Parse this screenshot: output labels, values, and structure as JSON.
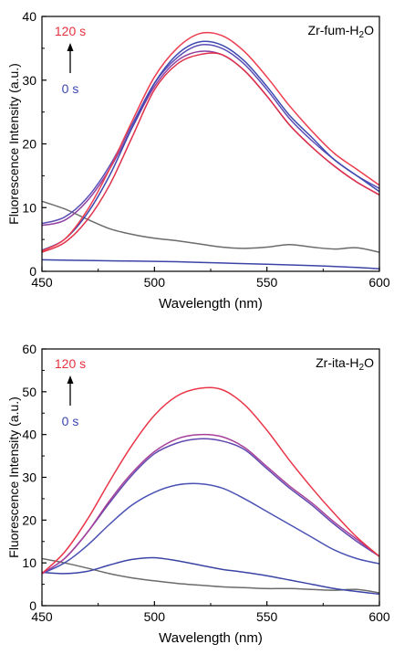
{
  "chart_data": [
    {
      "type": "line",
      "panel_label": "Zr-fum-H₂O",
      "xlabel": "Wavelength (nm)",
      "ylabel": "Fluorescence Intensity (a.u.)",
      "xlim": [
        450,
        600
      ],
      "ylim": [
        0,
        40
      ],
      "xticks": [
        450,
        500,
        550,
        600
      ],
      "yticks": [
        0,
        10,
        20,
        30,
        40
      ],
      "time_annotation": {
        "top": "120 s",
        "bottom": "0 s"
      },
      "series": [
        {
          "color": "#6b6b6b",
          "x": [
            450,
            460,
            470,
            480,
            490,
            500,
            510,
            520,
            530,
            540,
            550,
            560,
            570,
            580,
            590,
            600
          ],
          "y": [
            11.0,
            9.8,
            8.2,
            6.7,
            5.8,
            5.2,
            4.8,
            4.3,
            3.8,
            3.6,
            3.8,
            4.2,
            3.8,
            3.5,
            3.7,
            3.0
          ]
        },
        {
          "color": "#3b44a6",
          "x": [
            450,
            470,
            490,
            510,
            530,
            550,
            570,
            590,
            600
          ],
          "y": [
            1.8,
            1.7,
            1.6,
            1.5,
            1.3,
            1.1,
            0.9,
            0.6,
            0.4
          ]
        },
        {
          "color": "#5b4fb8",
          "x": [
            450,
            460,
            470,
            480,
            490,
            500,
            510,
            520,
            530,
            540,
            550,
            560,
            570,
            580,
            590,
            600
          ],
          "y": [
            7.5,
            8.5,
            11.5,
            16.5,
            23.0,
            29.5,
            33.5,
            35.5,
            35.0,
            32.5,
            28.5,
            24.0,
            20.5,
            17.5,
            15.0,
            13.0
          ]
        },
        {
          "color": "#8e3fa0",
          "x": [
            450,
            460,
            470,
            480,
            490,
            500,
            510,
            520,
            530,
            540,
            550,
            560,
            570,
            580,
            590,
            600
          ],
          "y": [
            7.2,
            8.0,
            11.0,
            16.0,
            22.5,
            29.0,
            33.0,
            34.5,
            34.0,
            31.5,
            27.5,
            23.0,
            19.5,
            16.5,
            14.0,
            12.0
          ]
        },
        {
          "color": "#3d49b0",
          "x": [
            450,
            460,
            470,
            480,
            490,
            500,
            510,
            520,
            530,
            540,
            550,
            560,
            570,
            580,
            590,
            600
          ],
          "y": [
            3.3,
            5.0,
            9.0,
            15.0,
            22.5,
            29.5,
            34.0,
            36.0,
            35.5,
            33.0,
            29.0,
            24.5,
            21.0,
            17.5,
            15.0,
            12.5
          ]
        },
        {
          "color": "#e0304a",
          "x": [
            450,
            460,
            470,
            480,
            490,
            500,
            510,
            520,
            530,
            540,
            550,
            560,
            570,
            580,
            590,
            600
          ],
          "y": [
            3.0,
            4.5,
            8.0,
            13.5,
            21.0,
            28.5,
            32.5,
            34.0,
            34.0,
            31.5,
            27.5,
            23.0,
            19.5,
            16.5,
            14.0,
            12.0
          ]
        },
        {
          "color": "#ee3d4e",
          "x": [
            450,
            460,
            470,
            480,
            490,
            500,
            510,
            520,
            530,
            540,
            550,
            560,
            570,
            580,
            590,
            600
          ],
          "y": [
            3.2,
            5.0,
            9.5,
            16.0,
            23.5,
            30.5,
            35.0,
            37.3,
            37.0,
            34.5,
            30.5,
            26.0,
            22.0,
            18.5,
            16.0,
            13.5
          ]
        }
      ]
    },
    {
      "type": "line",
      "panel_label": "Zr-ita-H₂O",
      "xlabel": "Wavelength (nm)",
      "ylabel": "Fluorescence Intensity (a.u.)",
      "xlim": [
        450,
        600
      ],
      "ylim": [
        0,
        60
      ],
      "xticks": [
        450,
        500,
        550,
        600
      ],
      "yticks": [
        0,
        10,
        20,
        30,
        40,
        50,
        60
      ],
      "time_annotation": {
        "top": "120 s",
        "bottom": "0 s"
      },
      "series": [
        {
          "color": "#6b6b6b",
          "x": [
            450,
            460,
            470,
            480,
            490,
            500,
            510,
            520,
            530,
            540,
            550,
            560,
            570,
            580,
            590,
            600
          ],
          "y": [
            11.0,
            10.0,
            8.8,
            7.5,
            6.5,
            5.8,
            5.2,
            4.8,
            4.4,
            4.2,
            4.0,
            4.0,
            3.8,
            3.6,
            3.8,
            3.0
          ]
        },
        {
          "color": "#3b44a6",
          "x": [
            450,
            460,
            470,
            480,
            490,
            500,
            510,
            520,
            530,
            540,
            550,
            560,
            570,
            580,
            590,
            600
          ],
          "y": [
            7.8,
            7.5,
            8.0,
            9.5,
            10.8,
            11.2,
            10.5,
            9.5,
            8.5,
            7.8,
            7.0,
            6.0,
            5.0,
            4.0,
            3.3,
            2.7
          ]
        },
        {
          "color": "#4a52b4",
          "x": [
            450,
            460,
            470,
            480,
            490,
            500,
            510,
            520,
            530,
            540,
            550,
            560,
            570,
            580,
            590,
            600
          ],
          "y": [
            7.5,
            10.0,
            14.0,
            19.0,
            23.5,
            26.5,
            28.2,
            28.5,
            27.5,
            25.0,
            22.0,
            19.0,
            16.0,
            13.0,
            11.0,
            9.8
          ]
        },
        {
          "color": "#6048b0",
          "x": [
            450,
            460,
            470,
            480,
            490,
            500,
            510,
            520,
            530,
            540,
            550,
            560,
            570,
            580,
            590,
            600
          ],
          "y": [
            7.5,
            11.0,
            17.0,
            24.0,
            30.5,
            35.5,
            38.0,
            39.0,
            38.5,
            36.5,
            32.0,
            27.5,
            23.5,
            19.0,
            15.0,
            11.5
          ]
        },
        {
          "color": "#a6409a",
          "x": [
            450,
            460,
            470,
            480,
            490,
            500,
            510,
            520,
            530,
            540,
            550,
            560,
            570,
            580,
            590,
            600
          ],
          "y": [
            7.5,
            11.0,
            17.0,
            24.5,
            31.0,
            36.0,
            39.0,
            40.0,
            39.5,
            37.0,
            32.5,
            28.0,
            24.0,
            19.5,
            15.5,
            11.5
          ]
        },
        {
          "color": "#ea3548",
          "x": [
            450,
            460,
            470,
            480,
            490,
            500,
            510,
            520,
            530,
            540,
            550,
            560,
            570,
            580,
            590,
            600
          ],
          "y": [
            7.5,
            12.5,
            20.0,
            29.0,
            37.5,
            44.5,
            49.0,
            50.8,
            50.5,
            47.0,
            41.0,
            34.0,
            27.5,
            21.5,
            16.0,
            11.5
          ]
        }
      ]
    }
  ]
}
